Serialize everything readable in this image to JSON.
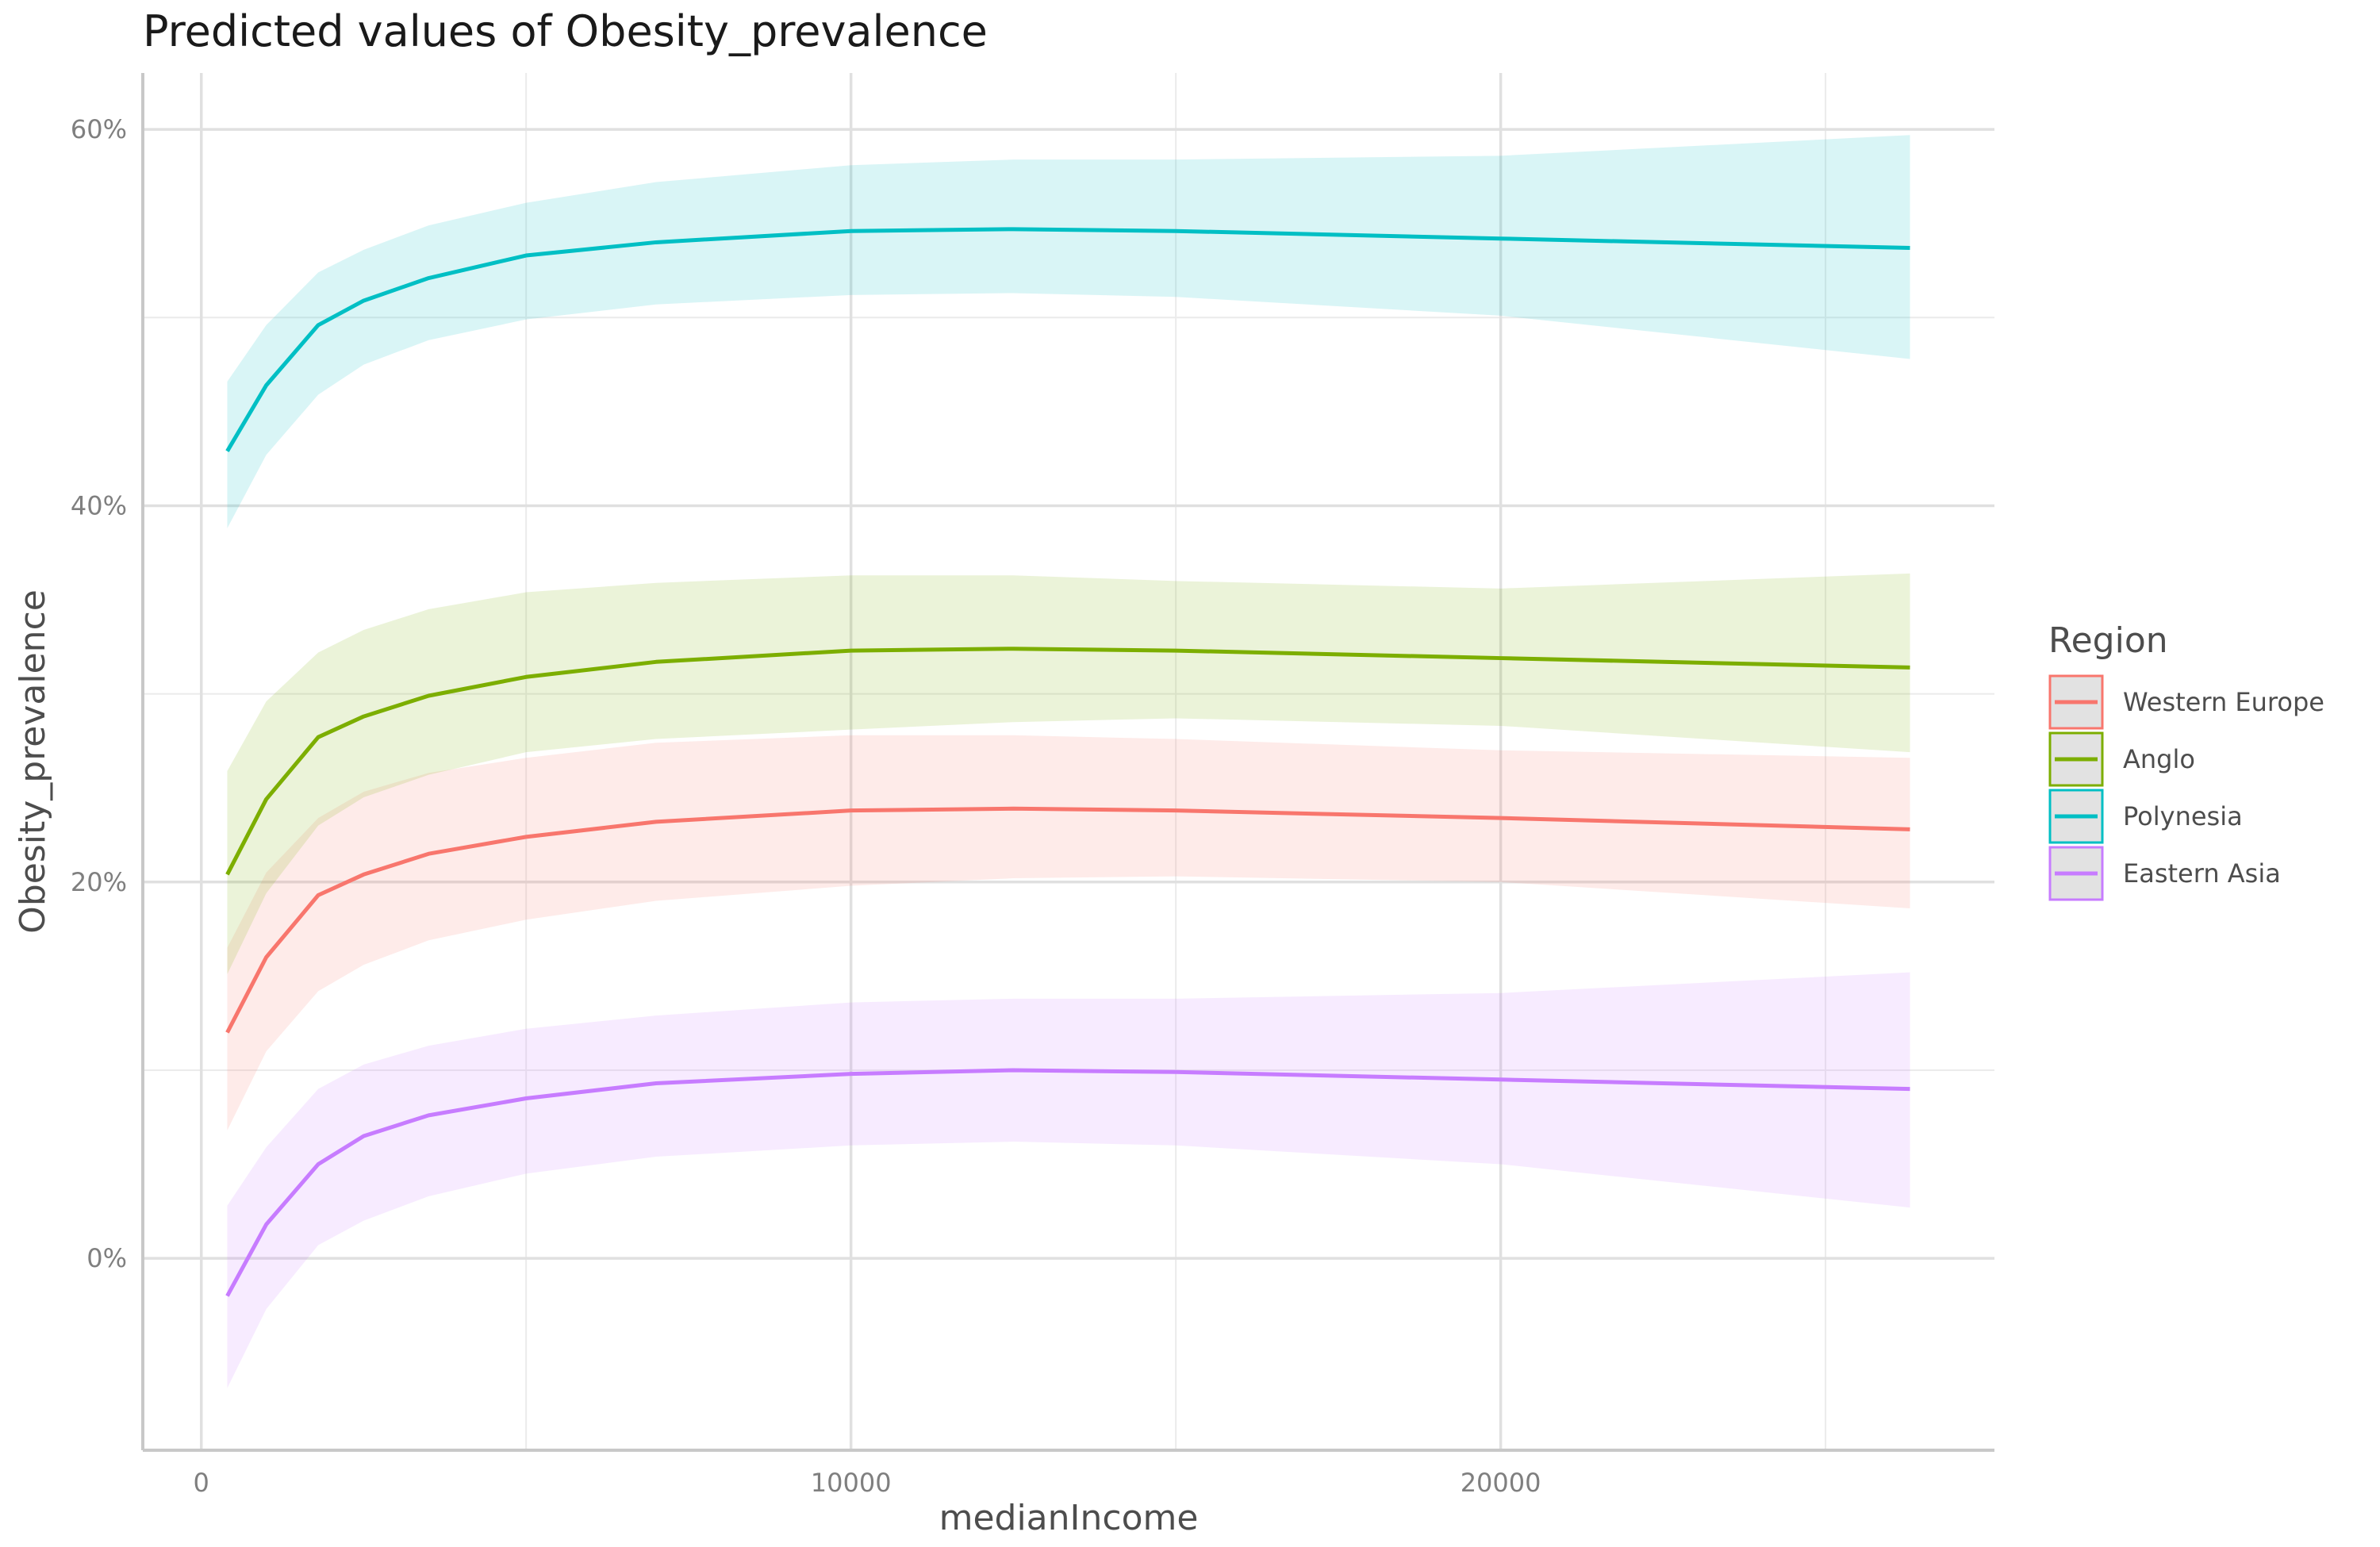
{
  "chart_data": {
    "type": "line",
    "title": "Predicted values of Obesity_prevalence",
    "xlabel": "medianIncome",
    "ylabel": "Obesity_prevalence",
    "xlim": [
      -900,
      27600
    ],
    "ylim": [
      -10.2,
      63
    ],
    "x_ticks": [
      0,
      10000,
      20000
    ],
    "x_tick_labels": [
      "0",
      "10000",
      "20000"
    ],
    "y_ticks": [
      0,
      20,
      40,
      60
    ],
    "y_tick_labels": [
      "0%",
      "20%",
      "40%",
      "60%"
    ],
    "grid": true,
    "legend": {
      "title": "Region",
      "position": "right"
    },
    "x": [
      400,
      1000,
      1800,
      2500,
      3500,
      5000,
      7000,
      10000,
      12500,
      15000,
      20000,
      26300
    ],
    "series": [
      {
        "name": "Western Europe",
        "color": "#F8766D",
        "values": [
          12.0,
          16.0,
          19.3,
          20.4,
          21.5,
          22.4,
          23.2,
          23.8,
          23.9,
          23.8,
          23.4,
          22.8
        ],
        "lower": [
          6.8,
          11.0,
          14.2,
          15.6,
          16.9,
          18.0,
          19.0,
          19.8,
          20.2,
          20.3,
          20.0,
          18.6
        ],
        "upper": [
          16.5,
          20.5,
          23.4,
          24.8,
          25.8,
          26.6,
          27.4,
          27.8,
          27.8,
          27.6,
          27.0,
          26.6
        ]
      },
      {
        "name": "Anglo",
        "color": "#7CAE00",
        "values": [
          20.4,
          24.4,
          27.7,
          28.8,
          29.9,
          30.9,
          31.7,
          32.3,
          32.4,
          32.3,
          31.9,
          31.4
        ],
        "lower": [
          15.1,
          19.4,
          23.0,
          24.5,
          25.7,
          26.9,
          27.6,
          28.1,
          28.5,
          28.7,
          28.3,
          26.9
        ],
        "upper": [
          25.9,
          29.6,
          32.2,
          33.4,
          34.5,
          35.4,
          35.9,
          36.3,
          36.3,
          36.0,
          35.6,
          36.4
        ]
      },
      {
        "name": "Polynesia",
        "color": "#00BFC4",
        "values": [
          42.9,
          46.4,
          49.6,
          50.9,
          52.1,
          53.3,
          54.0,
          54.6,
          54.7,
          54.6,
          54.2,
          53.7
        ],
        "lower": [
          38.8,
          42.7,
          45.9,
          47.5,
          48.8,
          49.9,
          50.7,
          51.2,
          51.3,
          51.1,
          50.1,
          47.8
        ],
        "upper": [
          46.6,
          49.6,
          52.4,
          53.6,
          54.9,
          56.1,
          57.2,
          58.1,
          58.4,
          58.4,
          58.6,
          59.7
        ]
      },
      {
        "name": "Eastern Asia",
        "color": "#C77CFF",
        "values": [
          -2.0,
          1.8,
          5.0,
          6.5,
          7.6,
          8.5,
          9.3,
          9.8,
          10.0,
          9.9,
          9.5,
          9.0
        ],
        "lower": [
          -6.9,
          -2.7,
          0.7,
          2.0,
          3.3,
          4.5,
          5.4,
          6.0,
          6.2,
          6.0,
          5.0,
          2.7
        ],
        "upper": [
          2.8,
          5.9,
          9.0,
          10.3,
          11.3,
          12.2,
          12.9,
          13.6,
          13.8,
          13.8,
          14.1,
          15.2
        ]
      }
    ]
  }
}
